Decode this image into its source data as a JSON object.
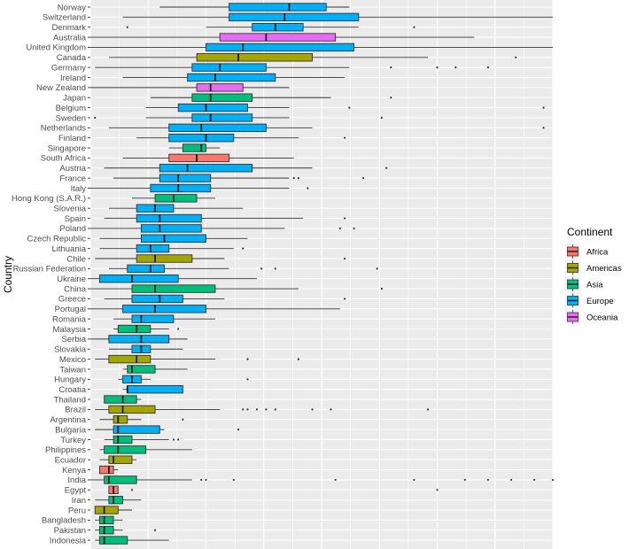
{
  "chart_data": {
    "type": "boxplot",
    "orientation": "horizontal",
    "ylabel": "Country",
    "xlabel": "",
    "legend": {
      "title": "Continent",
      "position": "right",
      "items": [
        {
          "label": "Africa",
          "color": "#F8766D"
        },
        {
          "label": "Americas",
          "color": "#A3A500"
        },
        {
          "label": "Asia",
          "color": "#00BF7D"
        },
        {
          "label": "Europe",
          "color": "#00B0F6"
        },
        {
          "label": "Oceania",
          "color": "#E76BF3"
        }
      ]
    },
    "xlim": [
      0,
      100
    ],
    "series": [
      {
        "country": "Norway",
        "continent": "Europe",
        "min": 15,
        "q1": 30,
        "median": 43,
        "q3": 51,
        "max": 56,
        "outliers": []
      },
      {
        "country": "Switzerland",
        "continent": "Europe",
        "min": 7,
        "q1": 30,
        "median": 42,
        "q3": 58,
        "max": 100,
        "outliers": []
      },
      {
        "country": "Denmark",
        "continent": "Europe",
        "min": 25,
        "q1": 35,
        "median": 40,
        "q3": 46,
        "max": 58,
        "outliers": [
          8,
          70
        ]
      },
      {
        "country": "Australia",
        "continent": "Oceania",
        "min": 0,
        "q1": 28,
        "median": 38,
        "q3": 53,
        "max": 83,
        "outliers": []
      },
      {
        "country": "United Kingdom",
        "continent": "Europe",
        "min": 0,
        "q1": 25,
        "median": 33,
        "q3": 57,
        "max": 100,
        "outliers": []
      },
      {
        "country": "Canada",
        "continent": "Americas",
        "min": 4,
        "q1": 23,
        "median": 32,
        "q3": 48,
        "max": 73,
        "outliers": [
          92
        ]
      },
      {
        "country": "Germany",
        "continent": "Europe",
        "min": 1,
        "q1": 22,
        "median": 28,
        "q3": 38,
        "max": 56,
        "outliers": [
          65,
          75,
          79,
          86
        ]
      },
      {
        "country": "Ireland",
        "continent": "Europe",
        "min": 7,
        "q1": 21,
        "median": 27,
        "q3": 40,
        "max": 55,
        "outliers": []
      },
      {
        "country": "New Zealand",
        "continent": "Oceania",
        "min": 0,
        "q1": 23,
        "median": 26,
        "q3": 33,
        "max": 43,
        "outliers": []
      },
      {
        "country": "Japan",
        "continent": "Asia",
        "min": 13,
        "q1": 22,
        "median": 26,
        "q3": 35,
        "max": 52,
        "outliers": [
          65
        ]
      },
      {
        "country": "Belgium",
        "continent": "Europe",
        "min": 12,
        "q1": 19,
        "median": 25,
        "q3": 34,
        "max": 43,
        "outliers": [
          56,
          98
        ]
      },
      {
        "country": "Sweden",
        "continent": "Europe",
        "min": 12,
        "q1": 22,
        "median": 26,
        "q3": 35,
        "max": 43,
        "outliers": [
          1,
          63
        ]
      },
      {
        "country": "Netherlands",
        "continent": "Europe",
        "min": 4,
        "q1": 17,
        "median": 24,
        "q3": 38,
        "max": 48,
        "outliers": [
          98
        ]
      },
      {
        "country": "Finland",
        "continent": "Europe",
        "min": 10,
        "q1": 17,
        "median": 25,
        "q3": 31,
        "max": 45,
        "outliers": [
          55
        ]
      },
      {
        "country": "Singapore",
        "continent": "Asia",
        "min": 17,
        "q1": 20,
        "median": 24,
        "q3": 25,
        "max": 28,
        "outliers": []
      },
      {
        "country": "South Africa",
        "continent": "Africa",
        "min": 7,
        "q1": 17,
        "median": 23,
        "q3": 30,
        "max": 44,
        "outliers": []
      },
      {
        "country": "Austria",
        "continent": "Europe",
        "min": 3,
        "q1": 15,
        "median": 21,
        "q3": 35,
        "max": 48,
        "outliers": [
          64
        ]
      },
      {
        "country": "France",
        "continent": "Europe",
        "min": 5,
        "q1": 15,
        "median": 19,
        "q3": 26,
        "max": 43,
        "outliers": [
          44,
          45,
          59
        ]
      },
      {
        "country": "Italy",
        "continent": "Europe",
        "min": 0,
        "q1": 13,
        "median": 19,
        "q3": 26,
        "max": 43,
        "outliers": [
          47
        ]
      },
      {
        "country": "Hong Kong (S.A.R.)",
        "continent": "Asia",
        "min": 9,
        "q1": 14,
        "median": 18,
        "q3": 23,
        "max": 27,
        "outliers": []
      },
      {
        "country": "Slovenia",
        "continent": "Europe",
        "min": 4,
        "q1": 10,
        "median": 14,
        "q3": 18,
        "max": 33,
        "outliers": []
      },
      {
        "country": "Spain",
        "continent": "Europe",
        "min": 3,
        "q1": 10,
        "median": 15,
        "q3": 24,
        "max": 46,
        "outliers": [
          55
        ]
      },
      {
        "country": "Poland",
        "continent": "Europe",
        "min": 0,
        "q1": 11,
        "median": 15,
        "q3": 24,
        "max": 42,
        "outliers": [
          54,
          57
        ]
      },
      {
        "country": "Czech Republic",
        "continent": "Europe",
        "min": 2,
        "q1": 11,
        "median": 16,
        "q3": 25,
        "max": 34,
        "outliers": []
      },
      {
        "country": "Lithuania",
        "continent": "Europe",
        "min": 2,
        "q1": 10,
        "median": 13,
        "q3": 17,
        "max": 31,
        "outliers": [
          33
        ]
      },
      {
        "country": "Chile",
        "continent": "Americas",
        "min": 1,
        "q1": 10,
        "median": 14,
        "q3": 22,
        "max": 29,
        "outliers": [
          55
        ]
      },
      {
        "country": "Russian Federation",
        "continent": "Europe",
        "min": 4,
        "q1": 8,
        "median": 13,
        "q3": 16,
        "max": 30,
        "outliers": [
          37,
          40,
          62
        ]
      },
      {
        "country": "Ukraine",
        "continent": "Europe",
        "min": 0,
        "q1": 2,
        "median": 9,
        "q3": 19,
        "max": 36,
        "outliers": []
      },
      {
        "country": "China",
        "continent": "Asia",
        "min": 0,
        "q1": 9,
        "median": 14,
        "q3": 27,
        "max": 45,
        "outliers": [
          63
        ]
      },
      {
        "country": "Greece",
        "continent": "Europe",
        "min": 3,
        "q1": 9,
        "median": 15,
        "q3": 20,
        "max": 29,
        "outliers": [
          55
        ]
      },
      {
        "country": "Portugal",
        "continent": "Europe",
        "min": 0,
        "q1": 7,
        "median": 14,
        "q3": 25,
        "max": 54,
        "outliers": []
      },
      {
        "country": "Romania",
        "continent": "Europe",
        "min": 5,
        "q1": 9,
        "median": 11,
        "q3": 18,
        "max": 27,
        "outliers": []
      },
      {
        "country": "Malaysia",
        "continent": "Asia",
        "min": 5,
        "q1": 6,
        "median": 10,
        "q3": 13,
        "max": 17,
        "outliers": [
          19
        ]
      },
      {
        "country": "Serbia",
        "continent": "Europe",
        "min": 0,
        "q1": 4,
        "median": 11,
        "q3": 17,
        "max": 21,
        "outliers": []
      },
      {
        "country": "Slovakia",
        "continent": "Europe",
        "min": 4,
        "q1": 9,
        "median": 11,
        "q3": 13,
        "max": 20,
        "outliers": []
      },
      {
        "country": "Mexico",
        "continent": "Americas",
        "min": 1,
        "q1": 4,
        "median": 10,
        "q3": 13,
        "max": 27,
        "outliers": [
          34,
          45
        ]
      },
      {
        "country": "Taiwan",
        "continent": "Asia",
        "min": 7,
        "q1": 8,
        "median": 9,
        "q3": 14,
        "max": 21,
        "outliers": []
      },
      {
        "country": "Hungary",
        "continent": "Europe",
        "min": 6,
        "q1": 7,
        "median": 9,
        "q3": 11,
        "max": 13,
        "outliers": [
          34
        ]
      },
      {
        "country": "Croatia",
        "continent": "Europe",
        "min": 7,
        "q1": 8,
        "median": 8,
        "q3": 20,
        "max": 20,
        "outliers": []
      },
      {
        "country": "Thailand",
        "continent": "Asia",
        "min": 3,
        "q1": 3,
        "median": 7,
        "q3": 10,
        "max": 11,
        "outliers": []
      },
      {
        "country": "Brazil",
        "continent": "Americas",
        "min": 1,
        "q1": 4,
        "median": 7,
        "q3": 14,
        "max": 28,
        "outliers": [
          33,
          34,
          36,
          38,
          40,
          48,
          52,
          73
        ]
      },
      {
        "country": "Argentina",
        "continent": "Americas",
        "min": 2,
        "q1": 5,
        "median": 6,
        "q3": 8,
        "max": 11,
        "outliers": [
          20
        ]
      },
      {
        "country": "Bulgaria",
        "continent": "Europe",
        "min": 1,
        "q1": 5,
        "median": 6,
        "q3": 15,
        "max": 16,
        "outliers": [
          32
        ]
      },
      {
        "country": "Turkey",
        "continent": "Asia",
        "min": 3,
        "q1": 5,
        "median": 6,
        "q3": 9,
        "max": 17,
        "outliers": [
          18,
          19
        ]
      },
      {
        "country": "Philippines",
        "continent": "Asia",
        "min": 2,
        "q1": 3,
        "median": 6,
        "q3": 12,
        "max": 22,
        "outliers": []
      },
      {
        "country": "Ecuador",
        "continent": "Americas",
        "min": 2,
        "q1": 4,
        "median": 5,
        "q3": 9,
        "max": 10,
        "outliers": []
      },
      {
        "country": "Kenya",
        "continent": "Africa",
        "min": 2,
        "q1": 2,
        "median": 4,
        "q3": 5,
        "max": 6,
        "outliers": []
      },
      {
        "country": "India",
        "continent": "Asia",
        "min": 0,
        "q1": 3,
        "median": 4,
        "q3": 10,
        "max": 22,
        "outliers": [
          24,
          25,
          31,
          53,
          70,
          81,
          86,
          91,
          96,
          100
        ]
      },
      {
        "country": "Egypt",
        "continent": "Africa",
        "min": 4,
        "q1": 4,
        "median": 5,
        "q3": 6,
        "max": 6,
        "outliers": [
          9,
          75
        ]
      },
      {
        "country": "Iran",
        "continent": "Asia",
        "min": 1,
        "q1": 4,
        "median": 5,
        "q3": 7,
        "max": 11,
        "outliers": []
      },
      {
        "country": "Peru",
        "continent": "Americas",
        "min": 1,
        "q1": 1,
        "median": 3,
        "q3": 6,
        "max": 9,
        "outliers": []
      },
      {
        "country": "Bangladesh",
        "continent": "Asia",
        "min": 1,
        "q1": 2,
        "median": 3,
        "q3": 5,
        "max": 7,
        "outliers": []
      },
      {
        "country": "Pakistan",
        "continent": "Asia",
        "min": 1,
        "q1": 2,
        "median": 3,
        "q3": 5,
        "max": 7,
        "outliers": [
          14
        ]
      },
      {
        "country": "Indonesia",
        "continent": "Asia",
        "min": 1,
        "q1": 2,
        "median": 3,
        "q3": 8,
        "max": 17,
        "outliers": []
      }
    ]
  }
}
